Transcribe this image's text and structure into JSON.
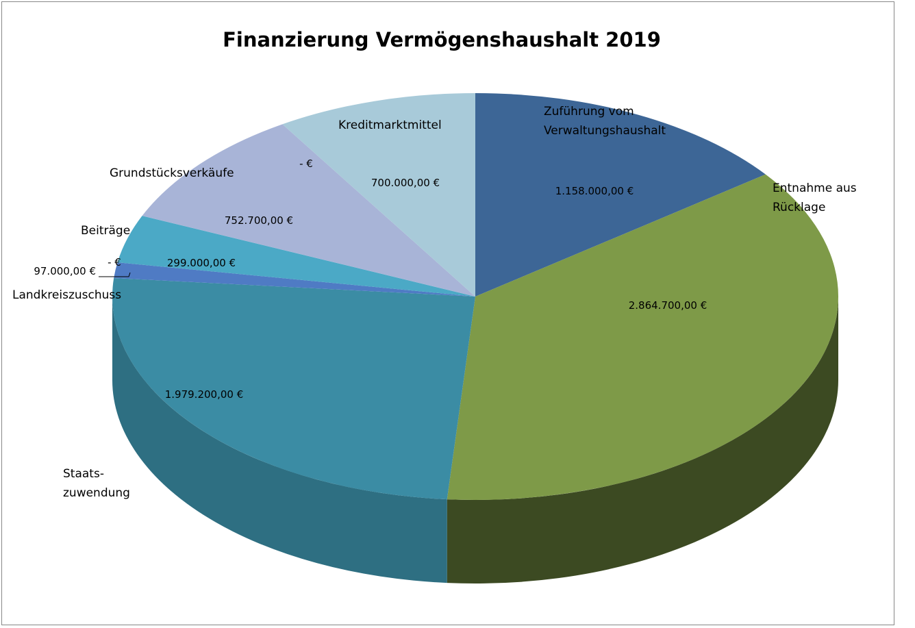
{
  "chart_data": {
    "type": "pie",
    "title": "Finanzierung Vermögenshaushalt 2019",
    "categories": [
      "Zuführung vom Verwaltungshaushalt",
      "Entnahme aus Rücklage",
      "Staats-zuwendung",
      "Landkreiszuschuss",
      "Beiträge",
      "Grundstücksverkäufe",
      "Kreditmarktmittel"
    ],
    "values": [
      1158000,
      2864700,
      1979200,
      97000,
      299000,
      752700,
      700000
    ],
    "value_labels": [
      "1.158.000,00 €",
      "2.864.700,00 €",
      "1.979.200,00 €",
      "97.000,00 €",
      "299.000,00 €",
      "752.700,00 €",
      "700.000,00 €"
    ],
    "zero_value_labels": [
      "-   €",
      "-   €"
    ],
    "category_label_lines": [
      [
        "Zuführung vom",
        "Verwaltungshaushalt"
      ],
      [
        "Entnahme aus",
        "Rücklage"
      ],
      [
        "Staats-",
        "zuwendung"
      ],
      [
        "Landkreiszuschuss"
      ],
      [
        "Beiträge"
      ],
      [
        "Grundstücksverkäufe"
      ],
      [
        "Kreditmarktmittel"
      ]
    ],
    "colors": [
      "#3D6696",
      "#7E9A48",
      "#3B8CA4",
      "#4F7BC4",
      "#4BA9C6",
      "#A8B4D7",
      "#A8CAD9"
    ],
    "side_colors": [
      "#2B4A6E",
      "#3C4A22",
      "#2E6F82",
      "#3B5E96",
      "#3A86A0",
      "#8692B4",
      "#86A4B2"
    ],
    "style": "3d-pie",
    "legend": "none"
  }
}
